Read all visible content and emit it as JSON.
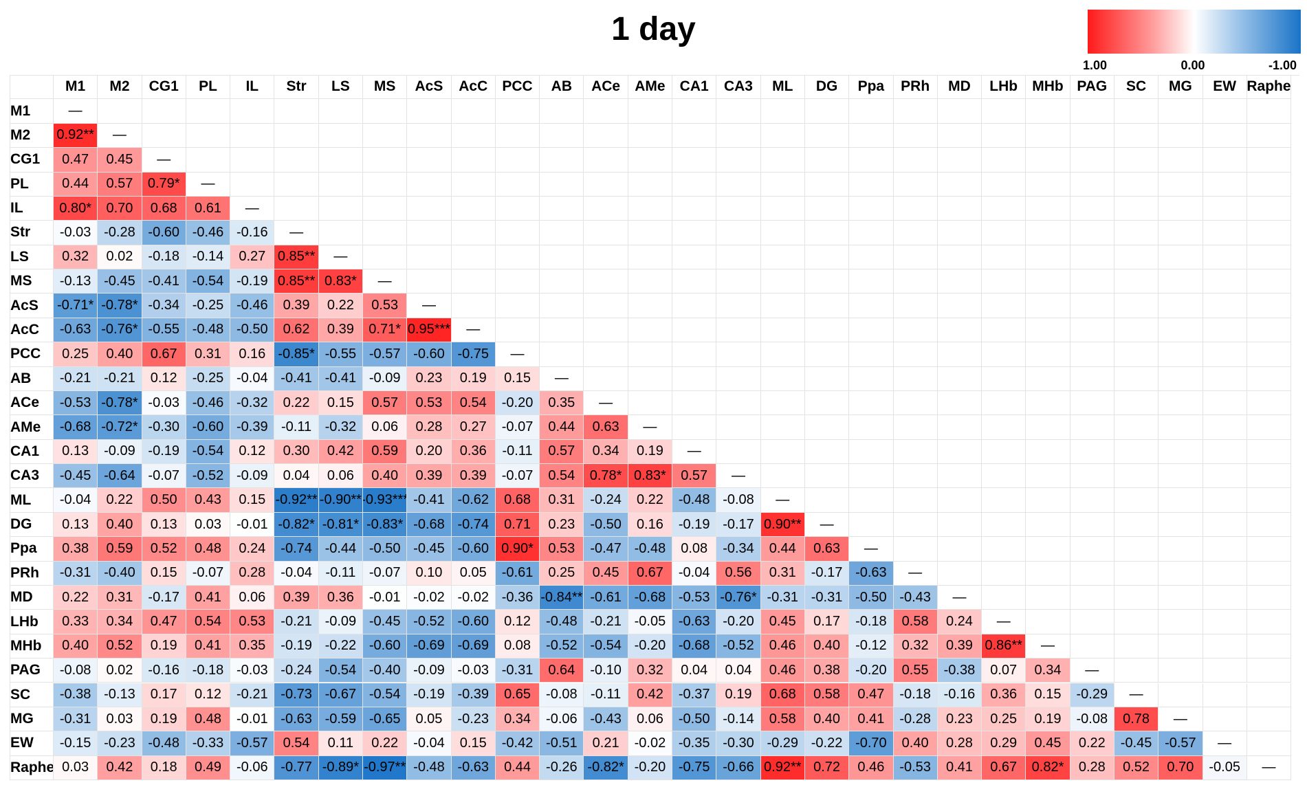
{
  "chart_data": {
    "type": "heatmap",
    "title": "1 day",
    "legend": {
      "max_label": "1.00",
      "mid_label": "0.00",
      "min_label": "-1.00",
      "max_color": "#ff1a1a",
      "mid_color": "#ffffff",
      "min_color": "#1a73c7"
    },
    "diagonal_symbol": "—",
    "labels": [
      "M1",
      "M2",
      "CG1",
      "PL",
      "IL",
      "Str",
      "LS",
      "MS",
      "AcS",
      "AcC",
      "PCC",
      "AB",
      "ACe",
      "AMe",
      "CA1",
      "CA3",
      "ML",
      "DG",
      "Ppa",
      "PRh",
      "MD",
      "LHb",
      "MHb",
      "PAG",
      "SC",
      "MG",
      "EW",
      "Raphe"
    ],
    "rows": [
      [],
      [
        "0.92**"
      ],
      [
        "0.47",
        "0.45"
      ],
      [
        "0.44",
        "0.57",
        "0.79*"
      ],
      [
        "0.80*",
        "0.70",
        "0.68",
        "0.61"
      ],
      [
        "-0.03",
        "-0.28",
        "-0.60",
        "-0.46",
        "-0.16"
      ],
      [
        "0.32",
        "0.02",
        "-0.18",
        "-0.14",
        "0.27",
        "0.85**"
      ],
      [
        "-0.13",
        "-0.45",
        "-0.41",
        "-0.54",
        "-0.19",
        "0.85**",
        "0.83*"
      ],
      [
        "-0.71*",
        "-0.78*",
        "-0.34",
        "-0.25",
        "-0.46",
        "0.39",
        "0.22",
        "0.53"
      ],
      [
        "-0.63",
        "-0.76*",
        "-0.55",
        "-0.48",
        "-0.50",
        "0.62",
        "0.39",
        "0.71*",
        "0.95***"
      ],
      [
        "0.25",
        "0.40",
        "0.67",
        "0.31",
        "0.16",
        "-0.85*",
        "-0.55",
        "-0.57",
        "-0.60",
        "-0.75"
      ],
      [
        "-0.21",
        "-0.21",
        "0.12",
        "-0.25",
        "-0.04",
        "-0.41",
        "-0.41",
        "-0.09",
        "0.23",
        "0.19",
        "0.15"
      ],
      [
        "-0.53",
        "-0.78*",
        "-0.03",
        "-0.46",
        "-0.32",
        "0.22",
        "0.15",
        "0.57",
        "0.53",
        "0.54",
        "-0.20",
        "0.35"
      ],
      [
        "-0.68",
        "-0.72*",
        "-0.30",
        "-0.60",
        "-0.39",
        "-0.11",
        "-0.32",
        "0.06",
        "0.28",
        "0.27",
        "-0.07",
        "0.44",
        "0.63"
      ],
      [
        "0.13",
        "-0.09",
        "-0.19",
        "-0.54",
        "0.12",
        "0.30",
        "0.42",
        "0.59",
        "0.20",
        "0.36",
        "-0.11",
        "0.57",
        "0.34",
        "0.19"
      ],
      [
        "-0.45",
        "-0.64",
        "-0.07",
        "-0.52",
        "-0.09",
        "0.04",
        "0.06",
        "0.40",
        "0.39",
        "0.39",
        "-0.07",
        "0.54",
        "0.78*",
        "0.83*",
        "0.57"
      ],
      [
        "-0.04",
        "0.22",
        "0.50",
        "0.43",
        "0.15",
        "-0.92**",
        "-0.90**",
        "-0.93***",
        "-0.41",
        "-0.62",
        "0.68",
        "0.31",
        "-0.24",
        "0.22",
        "-0.48",
        "-0.08"
      ],
      [
        "0.13",
        "0.40",
        "0.13",
        "0.03",
        "-0.01",
        "-0.82*",
        "-0.81*",
        "-0.83*",
        "-0.68",
        "-0.74",
        "0.71",
        "0.23",
        "-0.50",
        "0.16",
        "-0.19",
        "-0.17",
        "0.90**"
      ],
      [
        "0.38",
        "0.59",
        "0.52",
        "0.48",
        "0.24",
        "-0.74",
        "-0.44",
        "-0.50",
        "-0.45",
        "-0.60",
        "0.90*",
        "0.53",
        "-0.47",
        "-0.48",
        "0.08",
        "-0.34",
        "0.44",
        "0.63"
      ],
      [
        "-0.31",
        "-0.40",
        "0.15",
        "-0.07",
        "0.28",
        "-0.04",
        "-0.11",
        "-0.07",
        "0.10",
        "0.05",
        "-0.61",
        "0.25",
        "0.45",
        "0.67",
        "-0.04",
        "0.56",
        "0.31",
        "-0.17",
        "-0.63"
      ],
      [
        "0.22",
        "0.31",
        "-0.17",
        "0.41",
        "0.06",
        "0.39",
        "0.36",
        "-0.01",
        "-0.02",
        "-0.02",
        "-0.36",
        "-0.84**",
        "-0.61",
        "-0.68",
        "-0.53",
        "-0.76*",
        "-0.31",
        "-0.31",
        "-0.50",
        "-0.43"
      ],
      [
        "0.33",
        "0.34",
        "0.47",
        "0.54",
        "0.53",
        "-0.21",
        "-0.09",
        "-0.45",
        "-0.52",
        "-0.60",
        "0.12",
        "-0.48",
        "-0.21",
        "-0.05",
        "-0.63",
        "-0.20",
        "0.45",
        "0.17",
        "-0.18",
        "0.58",
        "0.24"
      ],
      [
        "0.40",
        "0.52",
        "0.19",
        "0.41",
        "0.35",
        "-0.19",
        "-0.22",
        "-0.60",
        "-0.69",
        "-0.69",
        "0.08",
        "-0.52",
        "-0.54",
        "-0.20",
        "-0.68",
        "-0.52",
        "0.46",
        "0.40",
        "-0.12",
        "0.32",
        "0.39",
        "0.86**"
      ],
      [
        "-0.08",
        "0.02",
        "-0.16",
        "-0.18",
        "-0.03",
        "-0.24",
        "-0.54",
        "-0.40",
        "-0.09",
        "-0.03",
        "-0.31",
        "0.64",
        "-0.10",
        "0.32",
        "0.04",
        "0.04",
        "0.46",
        "0.38",
        "-0.20",
        "0.55",
        "-0.38",
        "0.07",
        "0.34"
      ],
      [
        "-0.38",
        "-0.13",
        "0.17",
        "0.12",
        "-0.21",
        "-0.73",
        "-0.67",
        "-0.54",
        "-0.19",
        "-0.39",
        "0.65",
        "-0.08",
        "-0.11",
        "0.42",
        "-0.37",
        "0.19",
        "0.68",
        "0.58",
        "0.47",
        "-0.18",
        "-0.16",
        "0.36",
        "0.15",
        "-0.29"
      ],
      [
        "-0.31",
        "0.03",
        "0.19",
        "0.48",
        "-0.01",
        "-0.63",
        "-0.59",
        "-0.65",
        "0.05",
        "-0.23",
        "0.34",
        "-0.06",
        "-0.43",
        "0.06",
        "-0.50",
        "-0.14",
        "0.58",
        "0.40",
        "0.41",
        "-0.28",
        "0.23",
        "0.25",
        "0.19",
        "-0.08",
        "0.78"
      ],
      [
        "-0.15",
        "-0.23",
        "-0.48",
        "-0.33",
        "-0.57",
        "0.54",
        "0.11",
        "0.22",
        "-0.04",
        "0.15",
        "-0.42",
        "-0.51",
        "0.21",
        "-0.02",
        "-0.35",
        "-0.30",
        "-0.29",
        "-0.22",
        "-0.70",
        "0.40",
        "0.28",
        "0.29",
        "0.45",
        "0.22",
        "-0.45",
        "-0.57"
      ],
      [
        "0.03",
        "0.42",
        "0.18",
        "0.49",
        "-0.06",
        "-0.77",
        "-0.89*",
        "-0.97**",
        "-0.48",
        "-0.63",
        "0.44",
        "-0.26",
        "-0.82*",
        "-0.20",
        "-0.75",
        "-0.66",
        "0.92**",
        "0.72",
        "0.46",
        "-0.53",
        "0.41",
        "0.67",
        "0.82*",
        "0.28",
        "0.52",
        "0.70",
        "-0.05"
      ]
    ]
  }
}
